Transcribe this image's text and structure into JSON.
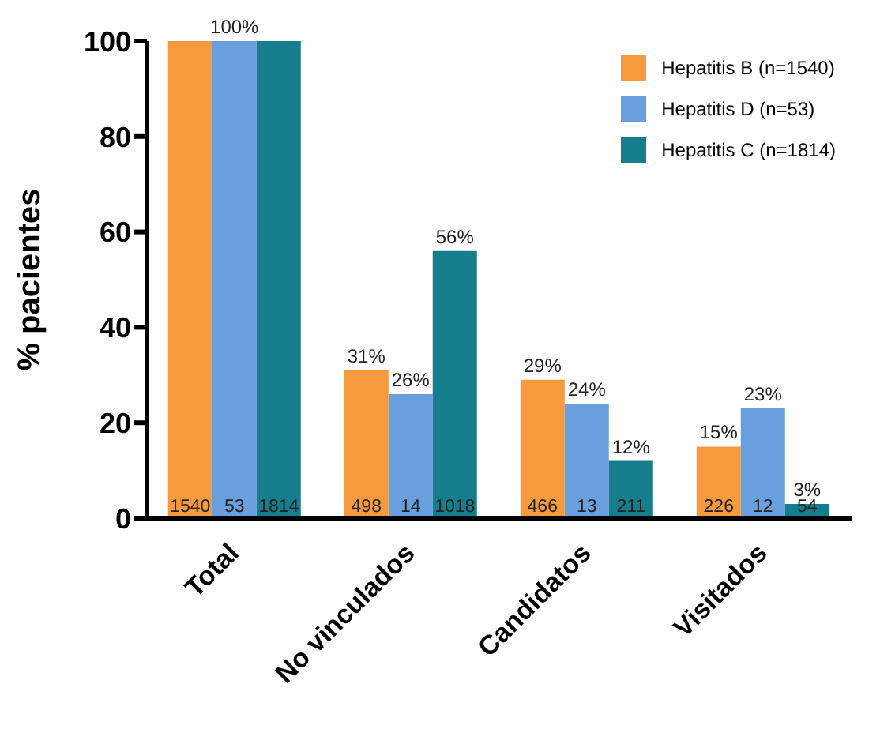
{
  "chart_data": {
    "type": "bar",
    "ylabel": "% pacientes",
    "categories": [
      "Total",
      "No vinculados",
      "Candidatos",
      "Visitados"
    ],
    "series": [
      {
        "name": "Hepatitis B (n=1540)",
        "color": "#f79a3e",
        "values": [
          100,
          31,
          29,
          15
        ],
        "value_labels": [
          null,
          "31%",
          "29%",
          "15%"
        ]
      },
      {
        "name": "Hepatitis D (n=53)",
        "color": "#6a9fde",
        "values": [
          100,
          26,
          24,
          23
        ],
        "value_labels": [
          "100%",
          "26%",
          "24%",
          "23%"
        ]
      },
      {
        "name": "Hepatitis C (n=1814)",
        "color": "#167d8c",
        "values": [
          100,
          56,
          12,
          3
        ],
        "value_labels": [
          null,
          "56%",
          "12%",
          "3%"
        ]
      }
    ],
    "annotations": [
      {
        "text": "1540",
        "x": "Total",
        "y": 0
      },
      {
        "text": "53",
        "x": "Total",
        "y": 0
      },
      {
        "text": "1814",
        "x": "Total",
        "y": 0
      },
      {
        "text": "498",
        "x": "No vinculados",
        "y": 0
      },
      {
        "text": "14",
        "x": "No vinculados",
        "y": 0
      },
      {
        "text": "1018",
        "x": "No vinculados",
        "y": 0
      },
      {
        "text": "466",
        "x": "Candidatos",
        "y": 0
      },
      {
        "text": "13",
        "x": "Candidatos",
        "y": 0
      },
      {
        "text": "211",
        "x": "Candidatos",
        "y": 0
      },
      {
        "text": "226",
        "x": "Visitados",
        "y": 0
      },
      {
        "text": "12",
        "x": "Visitados",
        "y": 0
      },
      {
        "text": "54",
        "x": "Visitados",
        "y": 0
      }
    ],
    "ylim": [
      0,
      100
    ],
    "yticks": [
      0,
      20,
      40,
      60,
      80,
      100
    ],
    "grid": false,
    "legend": "top right"
  }
}
